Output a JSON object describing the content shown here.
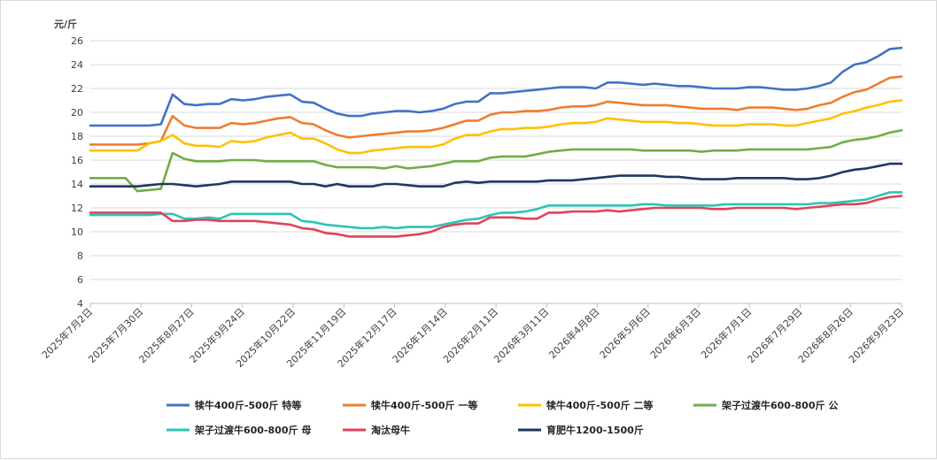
{
  "chart_data": {
    "type": "line",
    "ylabel": "元/斤",
    "ylim": [
      4,
      26
    ],
    "yticks": [
      4,
      6,
      8,
      10,
      12,
      14,
      16,
      18,
      20,
      22,
      24,
      26
    ],
    "grid": "horizontal",
    "legend_position": "bottom",
    "x_tick_labels": [
      "2025年7月2日",
      "2025年7月30日",
      "2025年8月27日",
      "2025年9月24日",
      "2025年10月22日",
      "2025年11月19日",
      "2025年12月17日",
      "2026年1月14日",
      "2026年2月11日",
      "2026年3月11日",
      "2026年4月8日",
      "2026年5月6日",
      "2026年6月3日",
      "2026年7月1日",
      "2026年7月29日",
      "2026年8月26日",
      "2026年9月23日"
    ],
    "series": [
      {
        "name": "犊牛400斤-500斤 特等",
        "color": "#4472C4",
        "values": [
          18.9,
          18.9,
          18.9,
          18.9,
          18.9,
          18.9,
          19.0,
          21.5,
          20.7,
          20.6,
          20.7,
          20.7,
          21.1,
          21.0,
          21.1,
          21.3,
          21.4,
          21.5,
          20.9,
          20.8,
          20.3,
          19.9,
          19.7,
          19.7,
          19.9,
          20.0,
          20.1,
          20.1,
          20.0,
          20.1,
          20.3,
          20.7,
          20.9,
          20.9,
          21.6,
          21.6,
          21.7,
          21.8,
          21.9,
          22.0,
          22.1,
          22.1,
          22.1,
          22.0,
          22.5,
          22.5,
          22.4,
          22.3,
          22.4,
          22.3,
          22.2,
          22.2,
          22.1,
          22.0,
          22.0,
          22.0,
          22.1,
          22.1,
          22.0,
          21.9,
          21.9,
          22.0,
          22.2,
          22.5,
          23.4,
          24.0,
          24.2,
          24.7,
          25.3,
          25.4
        ]
      },
      {
        "name": "犊牛400斤-500斤 一等",
        "color": "#ED7D31",
        "values": [
          17.3,
          17.3,
          17.3,
          17.3,
          17.3,
          17.4,
          17.6,
          19.7,
          18.9,
          18.7,
          18.7,
          18.7,
          19.1,
          19.0,
          19.1,
          19.3,
          19.5,
          19.6,
          19.1,
          19.0,
          18.5,
          18.1,
          17.9,
          18.0,
          18.1,
          18.2,
          18.3,
          18.4,
          18.4,
          18.5,
          18.7,
          19.0,
          19.3,
          19.3,
          19.8,
          20.0,
          20.0,
          20.1,
          20.1,
          20.2,
          20.4,
          20.5,
          20.5,
          20.6,
          20.9,
          20.8,
          20.7,
          20.6,
          20.6,
          20.6,
          20.5,
          20.4,
          20.3,
          20.3,
          20.3,
          20.2,
          20.4,
          20.4,
          20.4,
          20.3,
          20.2,
          20.3,
          20.6,
          20.8,
          21.3,
          21.7,
          21.9,
          22.4,
          22.9,
          23.0
        ]
      },
      {
        "name": "犊牛400斤-500斤 二等",
        "color": "#FFC000",
        "values": [
          16.8,
          16.8,
          16.8,
          16.8,
          16.8,
          17.4,
          17.6,
          18.1,
          17.4,
          17.2,
          17.2,
          17.1,
          17.6,
          17.5,
          17.6,
          17.9,
          18.1,
          18.3,
          17.8,
          17.8,
          17.4,
          16.9,
          16.6,
          16.6,
          16.8,
          16.9,
          17.0,
          17.1,
          17.1,
          17.1,
          17.3,
          17.8,
          18.1,
          18.1,
          18.4,
          18.6,
          18.6,
          18.7,
          18.7,
          18.8,
          19.0,
          19.1,
          19.1,
          19.2,
          19.5,
          19.4,
          19.3,
          19.2,
          19.2,
          19.2,
          19.1,
          19.1,
          19.0,
          18.9,
          18.9,
          18.9,
          19.0,
          19.0,
          19.0,
          18.9,
          18.9,
          19.1,
          19.3,
          19.5,
          19.9,
          20.1,
          20.4,
          20.6,
          20.9,
          21.0
        ]
      },
      {
        "name": "架子过渡牛600-800斤 公",
        "color": "#70AD47",
        "values": [
          14.5,
          14.5,
          14.5,
          14.5,
          13.4,
          13.5,
          13.6,
          16.6,
          16.1,
          15.9,
          15.9,
          15.9,
          16.0,
          16.0,
          16.0,
          15.9,
          15.9,
          15.9,
          15.9,
          15.9,
          15.6,
          15.4,
          15.4,
          15.4,
          15.4,
          15.3,
          15.5,
          15.3,
          15.4,
          15.5,
          15.7,
          15.9,
          15.9,
          15.9,
          16.2,
          16.3,
          16.3,
          16.3,
          16.5,
          16.7,
          16.8,
          16.9,
          16.9,
          16.9,
          16.9,
          16.9,
          16.9,
          16.8,
          16.8,
          16.8,
          16.8,
          16.8,
          16.7,
          16.8,
          16.8,
          16.8,
          16.9,
          16.9,
          16.9,
          16.9,
          16.9,
          16.9,
          17.0,
          17.1,
          17.5,
          17.7,
          17.8,
          18.0,
          18.3,
          18.5
        ]
      },
      {
        "name": "架子过渡牛600-800斤 母",
        "color": "#2EC4B6",
        "values": [
          11.4,
          11.4,
          11.4,
          11.4,
          11.4,
          11.4,
          11.5,
          11.5,
          11.1,
          11.1,
          11.2,
          11.1,
          11.5,
          11.5,
          11.5,
          11.5,
          11.5,
          11.5,
          10.9,
          10.8,
          10.6,
          10.5,
          10.4,
          10.3,
          10.3,
          10.4,
          10.3,
          10.4,
          10.4,
          10.4,
          10.6,
          10.8,
          11.0,
          11.1,
          11.4,
          11.6,
          11.6,
          11.7,
          11.9,
          12.2,
          12.2,
          12.2,
          12.2,
          12.2,
          12.2,
          12.2,
          12.2,
          12.3,
          12.3,
          12.2,
          12.2,
          12.2,
          12.2,
          12.2,
          12.3,
          12.3,
          12.3,
          12.3,
          12.3,
          12.3,
          12.3,
          12.3,
          12.4,
          12.4,
          12.5,
          12.6,
          12.7,
          13.0,
          13.3,
          13.3
        ]
      },
      {
        "name": "淘汰母牛",
        "color": "#E0435B",
        "values": [
          11.6,
          11.6,
          11.6,
          11.6,
          11.6,
          11.6,
          11.6,
          10.9,
          10.9,
          11.0,
          11.0,
          10.9,
          10.9,
          10.9,
          10.9,
          10.8,
          10.7,
          10.6,
          10.3,
          10.2,
          9.9,
          9.8,
          9.6,
          9.6,
          9.6,
          9.6,
          9.6,
          9.7,
          9.8,
          10.0,
          10.4,
          10.6,
          10.7,
          10.7,
          11.2,
          11.2,
          11.2,
          11.1,
          11.1,
          11.6,
          11.6,
          11.7,
          11.7,
          11.7,
          11.8,
          11.7,
          11.8,
          11.9,
          12.0,
          12.0,
          12.0,
          12.0,
          12.0,
          11.9,
          11.9,
          12.0,
          12.0,
          12.0,
          12.0,
          12.0,
          11.9,
          12.0,
          12.1,
          12.2,
          12.3,
          12.3,
          12.4,
          12.7,
          12.9,
          13.0
        ]
      },
      {
        "name": "育肥牛1200-1500斤",
        "color": "#1F3864",
        "values": [
          13.8,
          13.8,
          13.8,
          13.8,
          13.8,
          13.9,
          14.0,
          14.0,
          13.9,
          13.8,
          13.9,
          14.0,
          14.2,
          14.2,
          14.2,
          14.2,
          14.2,
          14.2,
          14.0,
          14.0,
          13.8,
          14.0,
          13.8,
          13.8,
          13.8,
          14.0,
          14.0,
          13.9,
          13.8,
          13.8,
          13.8,
          14.1,
          14.2,
          14.1,
          14.2,
          14.2,
          14.2,
          14.2,
          14.2,
          14.3,
          14.3,
          14.3,
          14.4,
          14.5,
          14.6,
          14.7,
          14.7,
          14.7,
          14.7,
          14.6,
          14.6,
          14.5,
          14.4,
          14.4,
          14.4,
          14.5,
          14.5,
          14.5,
          14.5,
          14.5,
          14.4,
          14.4,
          14.5,
          14.7,
          15.0,
          15.2,
          15.3,
          15.5,
          15.7,
          15.7
        ]
      }
    ]
  }
}
